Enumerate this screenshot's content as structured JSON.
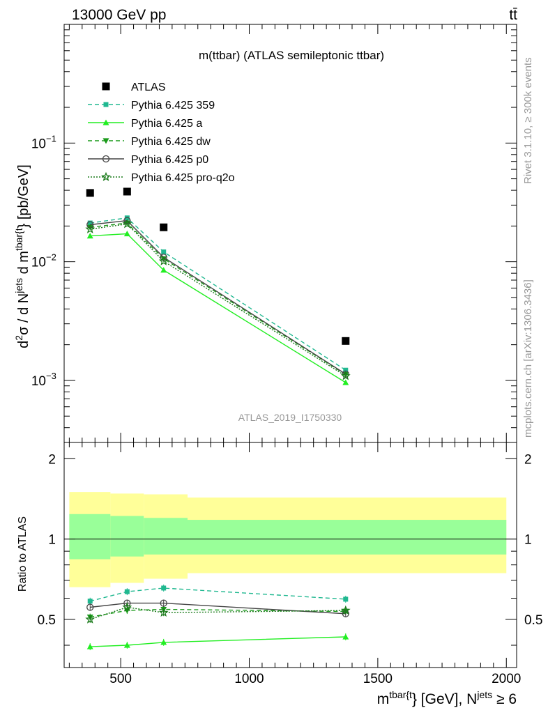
{
  "header": {
    "energy_label": "13000 GeV pp",
    "process_label": "tt̄",
    "side_label_top": "Rivet 3.1.10, ≥ 300k events",
    "side_label_bottom": "mcplots.cern.ch [arXiv:1306.3436]",
    "watermark": "ATLAS_2019_I1750330"
  },
  "chart_data": {
    "type": "line",
    "title": "m(ttbar) (ATLAS semileptonic ttbar)",
    "ylabel": "d²σ / d N^jets d m^tbar{t} [pb/GeV]",
    "ylabel_parts": [
      "d",
      "2",
      "σ  /  d N",
      "jets",
      " d m",
      "tbar{t",
      "} [pb/GeV]"
    ],
    "xlabel_parts": [
      "m",
      "tbar{t",
      "} [GeV], N",
      "jets",
      " ≥ 6"
    ],
    "ratio_ylabel": "Ratio to ATLAS",
    "x_tick_labels": [
      "500",
      "1000",
      "1500",
      "2000"
    ],
    "main_y_tick_labels": [
      {
        "base": "10",
        "exp": "−1",
        "value": 0.1
      },
      {
        "base": "10",
        "exp": "−2",
        "value": 0.01
      },
      {
        "base": "10",
        "exp": "−3",
        "value": 0.001
      }
    ],
    "ratio_y_tick_labels": [
      "2",
      "1",
      "0.5"
    ],
    "xlim": [
      280,
      2040
    ],
    "ylim": [
      0.0003,
      1.0
    ],
    "yscale": "log",
    "ratio_ylim": [
      0.33,
      2.3
    ],
    "ratio_yscale": "log",
    "data": {
      "name": "ATLAS",
      "x": [
        381,
        525,
        667,
        1375
      ],
      "y": [
        0.038,
        0.039,
        0.0195,
        0.00215
      ]
    },
    "bins": [
      [
        300,
        460
      ],
      [
        460,
        590
      ],
      [
        590,
        760
      ],
      [
        760,
        2000
      ]
    ],
    "band_inner": [
      [
        0.84,
        1.24
      ],
      [
        0.86,
        1.22
      ],
      [
        0.875,
        1.2
      ],
      [
        0.875,
        1.18
      ]
    ],
    "band_outer": [
      [
        0.66,
        1.5
      ],
      [
        0.685,
        1.48
      ],
      [
        0.71,
        1.47
      ],
      [
        0.745,
        1.43
      ]
    ],
    "series": [
      {
        "name": "Pythia 6.425 359",
        "color": "#20b890",
        "dash": "6,4",
        "marker": "square",
        "x": [
          381,
          525,
          667,
          1375
        ],
        "y": [
          0.0212,
          0.0234,
          0.0121,
          0.00122
        ],
        "ratio": [
          0.585,
          0.635,
          0.655,
          0.595
        ]
      },
      {
        "name": "Pythia 6.425 a",
        "color": "#22ee22",
        "dash": "",
        "marker": "triangle-up",
        "x": [
          381,
          525,
          667,
          1375
        ],
        "y": [
          0.0165,
          0.0172,
          0.0085,
          0.00096
        ],
        "ratio": [
          0.395,
          0.4,
          0.41,
          0.43
        ]
      },
      {
        "name": "Pythia 6.425 dw",
        "color": "#1a9a1a",
        "dash": "6,4",
        "marker": "triangle-down",
        "x": [
          381,
          525,
          667,
          1375
        ],
        "y": [
          0.0195,
          0.0212,
          0.0106,
          0.00112
        ],
        "ratio": [
          0.51,
          0.54,
          0.545,
          0.535
        ]
      },
      {
        "name": "Pythia 6.425 p0",
        "color": "#444444",
        "dash": "",
        "marker": "circle-open",
        "x": [
          381,
          525,
          667,
          1375
        ],
        "y": [
          0.0205,
          0.0222,
          0.0109,
          0.00113
        ],
        "ratio": [
          0.555,
          0.575,
          0.575,
          0.525
        ]
      },
      {
        "name": "Pythia 6.425 pro-q2o",
        "color": "#1a7a1a",
        "dash": "2,2",
        "marker": "star-open",
        "x": [
          381,
          525,
          667,
          1375
        ],
        "y": [
          0.0188,
          0.0208,
          0.0101,
          0.00109
        ],
        "ratio": [
          0.5,
          0.555,
          0.53,
          0.54
        ]
      }
    ],
    "legend_placement": "top-left",
    "grid": false
  }
}
